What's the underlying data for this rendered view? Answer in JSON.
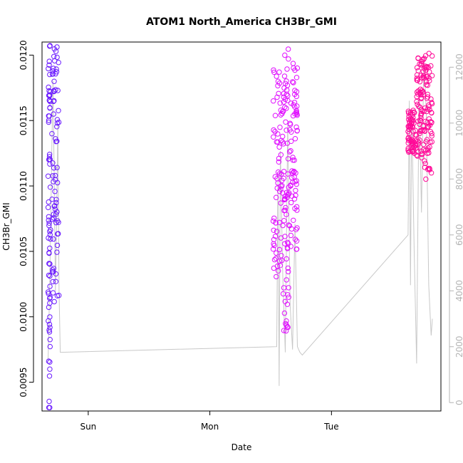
{
  "chart_data": {
    "type": "scatter",
    "title": "ATOM1 North_America CH3Br_GMI",
    "xlabel": "Date",
    "ylabel": "CH3Br_GMI",
    "x_ticks": [
      {
        "label": "Sun",
        "value": 0
      },
      {
        "label": "Mon",
        "value": 1
      },
      {
        "label": "Tue",
        "value": 2
      }
    ],
    "xlim": [
      -0.38,
      2.9
    ],
    "ylim": [
      0.00928,
      0.0121
    ],
    "y_ticks": [
      "0.0095",
      "0.0100",
      "0.0105",
      "0.0110",
      "0.0115",
      "0.0120"
    ],
    "y_tick_values": [
      0.0095,
      0.01,
      0.0105,
      0.011,
      0.0115,
      0.012
    ],
    "y2_ticks": [
      "0",
      "2000",
      "4000",
      "6000",
      "8000",
      "10000",
      "12000"
    ],
    "y2_tick_values": [
      0,
      2000,
      4000,
      6000,
      8000,
      10000,
      12000
    ],
    "y2lim": [
      -300,
      12900
    ],
    "grid": false,
    "series": [
      {
        "kind": "points",
        "color": "#6b1bff",
        "segments": [
          {
            "x0": -0.33,
            "x1": -0.31,
            "ymin": 0.00929,
            "ymax": 0.01208
          },
          {
            "x0": -0.3,
            "x1": -0.24,
            "ymin": 0.0101,
            "ymax": 0.01208
          }
        ]
      },
      {
        "kind": "points",
        "color": "#e010ff",
        "segments": [
          {
            "x0": 1.52,
            "x1": 1.6,
            "ymin": 0.0103,
            "ymax": 0.0119
          },
          {
            "x0": 1.6,
            "x1": 1.65,
            "ymin": 0.00988,
            "ymax": 0.01205
          },
          {
            "x0": 1.65,
            "x1": 1.72,
            "ymin": 0.0105,
            "ymax": 0.01195
          }
        ]
      },
      {
        "kind": "points",
        "color": "#ff0a98",
        "segments": [
          {
            "x0": 2.63,
            "x1": 2.7,
            "ymin": 0.01125,
            "ymax": 0.0116
          },
          {
            "x0": 2.7,
            "x1": 2.76,
            "ymin": 0.0112,
            "ymax": 0.012
          },
          {
            "x0": 2.76,
            "x1": 2.83,
            "ymin": 0.01105,
            "ymax": 0.01205
          }
        ]
      }
    ],
    "secondary_line": {
      "color": "#c8c8c8",
      "x": [
        -0.33,
        -0.32,
        -0.31,
        -0.3,
        -0.29,
        -0.28,
        -0.27,
        -0.26,
        -0.25,
        -0.24,
        -0.23,
        1.55,
        1.56,
        1.57,
        1.58,
        1.6,
        1.62,
        1.64,
        1.66,
        1.68,
        1.7,
        1.72,
        1.74,
        1.76,
        2.63,
        2.64,
        2.65,
        2.66,
        2.68,
        2.7,
        2.72,
        2.74,
        2.76,
        2.78,
        2.8,
        2.82,
        2.83
      ],
      "y": [
        1500,
        3500,
        6000,
        9000,
        11500,
        8000,
        4000,
        6500,
        10000,
        4000,
        1800,
        2000,
        8200,
        600,
        9000,
        4500,
        1800,
        10000,
        3500,
        1900,
        6400,
        2000,
        1800,
        1700,
        6000,
        10800,
        4200,
        10500,
        5500,
        1400,
        11200,
        6800,
        12400,
        10300,
        4200,
        2400,
        3000
      ]
    }
  }
}
